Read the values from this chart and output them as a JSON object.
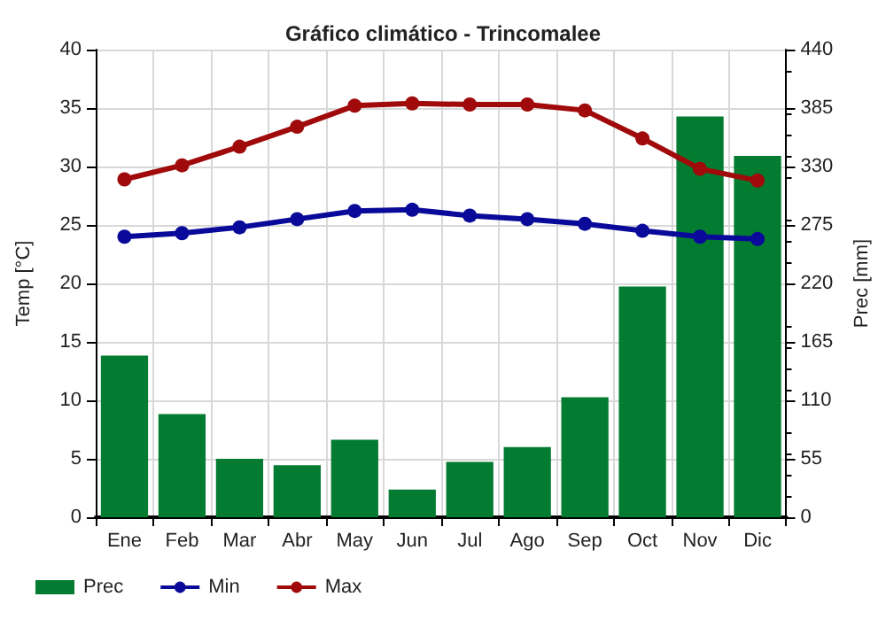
{
  "chart_data": {
    "type": "bar",
    "title": "Gráfico climático - Trincomalee",
    "ylabel": "Temp [°C]",
    "y2label": "Prec [mm]",
    "categories": [
      "Ene",
      "Feb",
      "Mar",
      "Abr",
      "May",
      "Jun",
      "Jul",
      "Ago",
      "Sep",
      "Oct",
      "Nov",
      "Dic"
    ],
    "series": [
      {
        "name": "Prec",
        "axis": "y2",
        "color": "#037b30",
        "values": [
          152,
          97,
          55,
          49,
          73,
          26,
          52,
          66,
          113,
          217,
          377,
          340
        ]
      },
      {
        "name": "Min",
        "type": "line",
        "color": "#0a0a9a",
        "values": [
          24.0,
          24.3,
          24.8,
          25.5,
          26.2,
          26.3,
          25.8,
          25.5,
          25.1,
          24.5,
          24.0,
          23.8
        ]
      },
      {
        "name": "Max",
        "type": "line",
        "color": "#a00a0a",
        "values": [
          28.9,
          30.1,
          31.7,
          33.4,
          35.2,
          35.4,
          35.3,
          35.3,
          34.8,
          32.4,
          29.8,
          28.8
        ]
      }
    ],
    "ylim": [
      0,
      40
    ],
    "yticks": [
      0,
      5,
      10,
      15,
      20,
      25,
      30,
      35,
      40
    ],
    "y2lim": [
      0,
      440
    ],
    "y2ticks": [
      0,
      55,
      110,
      165,
      220,
      275,
      330,
      385,
      440
    ],
    "grid": true,
    "legend": "bottom left",
    "marker": "circle",
    "line_style": "solid"
  }
}
